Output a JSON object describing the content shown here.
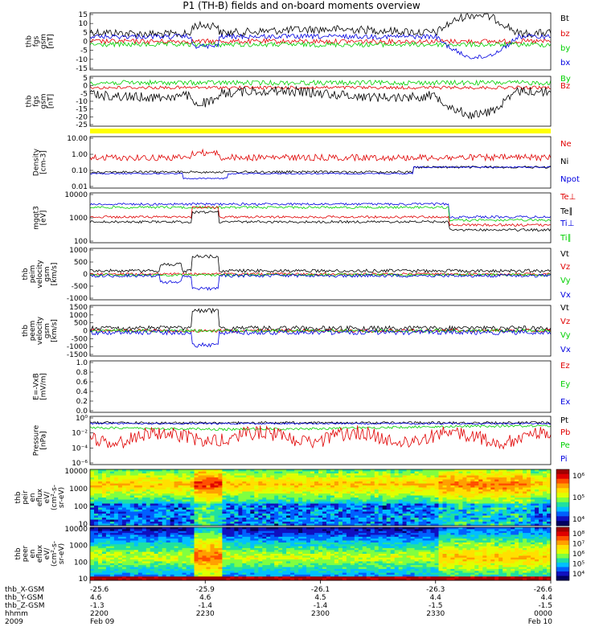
{
  "title": "P1 (TH-B) fields and on-board moments overview",
  "colors": {
    "black": "#000000",
    "red": "#e00000",
    "green": "#00d000",
    "blue": "#0000e0",
    "yellow": "#ffff00"
  },
  "chart_data": [
    {
      "type": "line",
      "ylabel": [
        "thb",
        "fgs",
        "gsm",
        "[nT]"
      ],
      "yticks": [
        "15",
        "10",
        "5",
        "0",
        "-5",
        "-10",
        "-15"
      ],
      "ylim": [
        -15,
        15
      ],
      "series": [
        {
          "name": "Bt",
          "color": "#000000"
        },
        {
          "name": "bz",
          "color": "#e00000"
        },
        {
          "name": "by",
          "color": "#00d000"
        },
        {
          "name": "bx",
          "color": "#0000e0"
        }
      ]
    },
    {
      "type": "line",
      "ylabel": [
        "thb",
        "fgs",
        "gsm",
        "[nT]"
      ],
      "yticks": [
        "5",
        "0",
        "-5",
        "-10",
        "-15",
        "-20",
        "-25"
      ],
      "ylim": [
        -25,
        5
      ],
      "series": [
        {
          "name": "By",
          "color": "#00d000"
        },
        {
          "name": "Bz",
          "color": "#e00000"
        }
      ]
    },
    {
      "type": "line",
      "ylabel": [
        "Density",
        "[cm-3]"
      ],
      "yticks": [
        "10.00",
        "1.00",
        "0.10",
        "0.01"
      ],
      "log": true,
      "series": [
        {
          "name": "Ne",
          "color": "#e00000"
        },
        {
          "name": "Ni",
          "color": "#000000"
        },
        {
          "name": "Npot",
          "color": "#0000e0"
        }
      ]
    },
    {
      "type": "line",
      "ylabel": [
        "mgqt3",
        "[eV]"
      ],
      "yticks": [
        "10000",
        "1000",
        "100"
      ],
      "log": true,
      "series": [
        {
          "name": "Te⊥",
          "color": "#e00000"
        },
        {
          "name": "Te∥",
          "color": "#000000"
        },
        {
          "name": "Ti⊥",
          "color": "#0000e0"
        },
        {
          "name": "Ti∥",
          "color": "#00d000"
        }
      ]
    },
    {
      "type": "line",
      "ylabel": [
        "thb",
        "peim",
        "velocity",
        "gsm",
        "[km/s]"
      ],
      "yticks": [
        "1000",
        "500",
        "0",
        "-500",
        "-1000"
      ],
      "ylim": [
        -1000,
        1000
      ],
      "series": [
        {
          "name": "Vt",
          "color": "#000000"
        },
        {
          "name": "Vz",
          "color": "#e00000"
        },
        {
          "name": "Vy",
          "color": "#00d000"
        },
        {
          "name": "Vx",
          "color": "#0000e0"
        }
      ]
    },
    {
      "type": "line",
      "ylabel": [
        "thb",
        "peem",
        "velocity",
        "gsm",
        "[km/s]"
      ],
      "yticks": [
        "1500",
        "1000",
        "500",
        "0",
        "-500",
        "-1000",
        "-1500"
      ],
      "ylim": [
        -1500,
        1500
      ],
      "series": [
        {
          "name": "Vt",
          "color": "#000000"
        },
        {
          "name": "Vz",
          "color": "#e00000"
        },
        {
          "name": "Vy",
          "color": "#00d000"
        },
        {
          "name": "Vx",
          "color": "#0000e0"
        }
      ]
    },
    {
      "type": "line",
      "ylabel": [
        "E=-VxB",
        "[mV/m]"
      ],
      "yticks": [
        "1.0",
        "0.8",
        "0.6",
        "0.4",
        "0.2",
        "0.0"
      ],
      "ylim": [
        0,
        1
      ],
      "series": [
        {
          "name": "Ez",
          "color": "#e00000"
        },
        {
          "name": "Ey",
          "color": "#00d000"
        },
        {
          "name": "Ex",
          "color": "#0000e0"
        }
      ]
    },
    {
      "type": "line",
      "ylabel": [
        "Pressure",
        "[nPa]"
      ],
      "yticks": [
        "10⁰",
        "10⁻²",
        "10⁻⁴",
        "10⁻⁶"
      ],
      "log": true,
      "series": [
        {
          "name": "Pt",
          "color": "#000000"
        },
        {
          "name": "Pb",
          "color": "#e00000"
        },
        {
          "name": "Pe",
          "color": "#00d000"
        },
        {
          "name": "Pi",
          "color": "#0000e0"
        }
      ]
    },
    {
      "type": "heatmap",
      "ylabel": [
        "thb",
        "peir",
        "en",
        "eflux",
        "eV/",
        "(cm²-s-",
        "sr-eV)"
      ],
      "yticks": [
        "10000",
        "1000",
        "100",
        "10"
      ],
      "colorbar_ticks": [
        "10⁶",
        "10⁵",
        "10⁴"
      ]
    },
    {
      "type": "heatmap",
      "ylabel": [
        "thb",
        "peer",
        "en",
        "eflux",
        "eV/",
        "(cm²-s-",
        "sr-eV)"
      ],
      "yticks": [
        "10000",
        "1000",
        "100",
        "10"
      ],
      "colorbar_ticks": [
        "10⁸",
        "10⁷",
        "10⁶",
        "10⁵",
        "10⁴"
      ]
    }
  ],
  "xaxis": {
    "row_labels": [
      "thb_X-GSM",
      "thb_Y-GSM",
      "thb_Z-GSM",
      "hhmm",
      "2009"
    ],
    "columns": [
      {
        "values": [
          "-25.6",
          "4.6",
          "-1.3",
          "2200",
          "Feb 09"
        ]
      },
      {
        "values": [
          "-25.9",
          "4.6",
          "-1.4",
          "2230",
          ""
        ]
      },
      {
        "values": [
          "-26.1",
          "4.5",
          "-1.4",
          "2300",
          ""
        ]
      },
      {
        "values": [
          "-26.3",
          "4.4",
          "-1.5",
          "2330",
          ""
        ]
      },
      {
        "values": [
          "-26.6",
          "4.4",
          "-1.5",
          "0000",
          "Feb 10"
        ]
      }
    ]
  }
}
